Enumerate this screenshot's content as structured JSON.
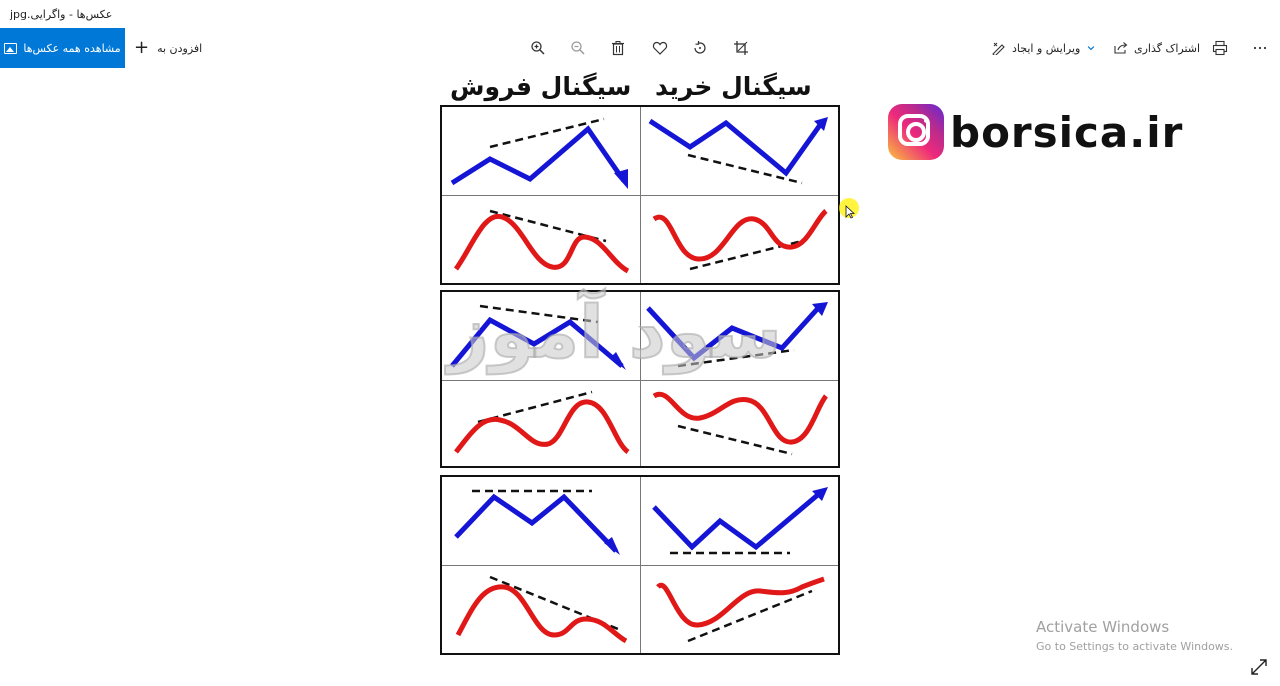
{
  "window": {
    "title": "عکس‌ها - واگرایی.jpg"
  },
  "toolbar": {
    "see_all_label": "مشاهده همه عکس‌ها",
    "add_to_label": "افزودن به",
    "edit_create_label": "ویرایش و ایجاد",
    "share_label": "اشتراک گذاری",
    "tools": [
      "zoom-in-icon",
      "zoom-out-icon",
      "delete-icon",
      "favorite-icon",
      "rotate-icon",
      "crop-icon"
    ],
    "print_icon": "print-icon",
    "more_icon": "more-icon"
  },
  "image": {
    "heading_buy": "سیگنال خرید",
    "heading_sell": "سیگنال فروش",
    "brand": "borsica.ir",
    "watermark": "سود آموز",
    "colors": {
      "up_line": "#1515d6",
      "curve": "#e01818",
      "dashed": "#111111",
      "instagram": "#ee2a7b"
    }
  },
  "system": {
    "activate_title": "Activate Windows",
    "activate_sub": "Go to Settings to activate Windows."
  }
}
